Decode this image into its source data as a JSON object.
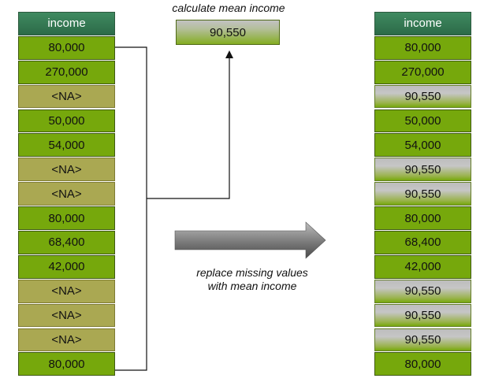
{
  "diagram": {
    "left_column": {
      "header": "income",
      "cells": [
        {
          "text": "80,000",
          "kind": "value"
        },
        {
          "text": "270,000",
          "kind": "value"
        },
        {
          "text": "<NA>",
          "kind": "missing"
        },
        {
          "text": "50,000",
          "kind": "value"
        },
        {
          "text": "54,000",
          "kind": "value"
        },
        {
          "text": "<NA>",
          "kind": "missing"
        },
        {
          "text": "<NA>",
          "kind": "missing"
        },
        {
          "text": "80,000",
          "kind": "value"
        },
        {
          "text": "68,400",
          "kind": "value"
        },
        {
          "text": "42,000",
          "kind": "value"
        },
        {
          "text": "<NA>",
          "kind": "missing"
        },
        {
          "text": "<NA>",
          "kind": "missing"
        },
        {
          "text": "<NA>",
          "kind": "missing"
        },
        {
          "text": "80,000",
          "kind": "value"
        }
      ]
    },
    "mean": {
      "caption": "calculate mean income",
      "value": "90,550"
    },
    "arrow": {
      "caption_line1": "replace missing values",
      "caption_line2": "with mean income"
    },
    "right_column": {
      "header": "income",
      "cells": [
        {
          "text": "80,000",
          "kind": "value"
        },
        {
          "text": "270,000",
          "kind": "value"
        },
        {
          "text": "90,550",
          "kind": "filled"
        },
        {
          "text": "50,000",
          "kind": "value"
        },
        {
          "text": "54,000",
          "kind": "value"
        },
        {
          "text": "90,550",
          "kind": "filled"
        },
        {
          "text": "90,550",
          "kind": "filled"
        },
        {
          "text": "80,000",
          "kind": "value"
        },
        {
          "text": "68,400",
          "kind": "value"
        },
        {
          "text": "42,000",
          "kind": "value"
        },
        {
          "text": "90,550",
          "kind": "filled"
        },
        {
          "text": "90,550",
          "kind": "filled"
        },
        {
          "text": "90,550",
          "kind": "filled"
        },
        {
          "text": "80,000",
          "kind": "value"
        }
      ]
    },
    "colors": {
      "header": "#2f7050",
      "value": "#76a80c",
      "missing": "#aaa852",
      "connector": "#111111",
      "big_arrow": "#7a7a7a"
    }
  }
}
